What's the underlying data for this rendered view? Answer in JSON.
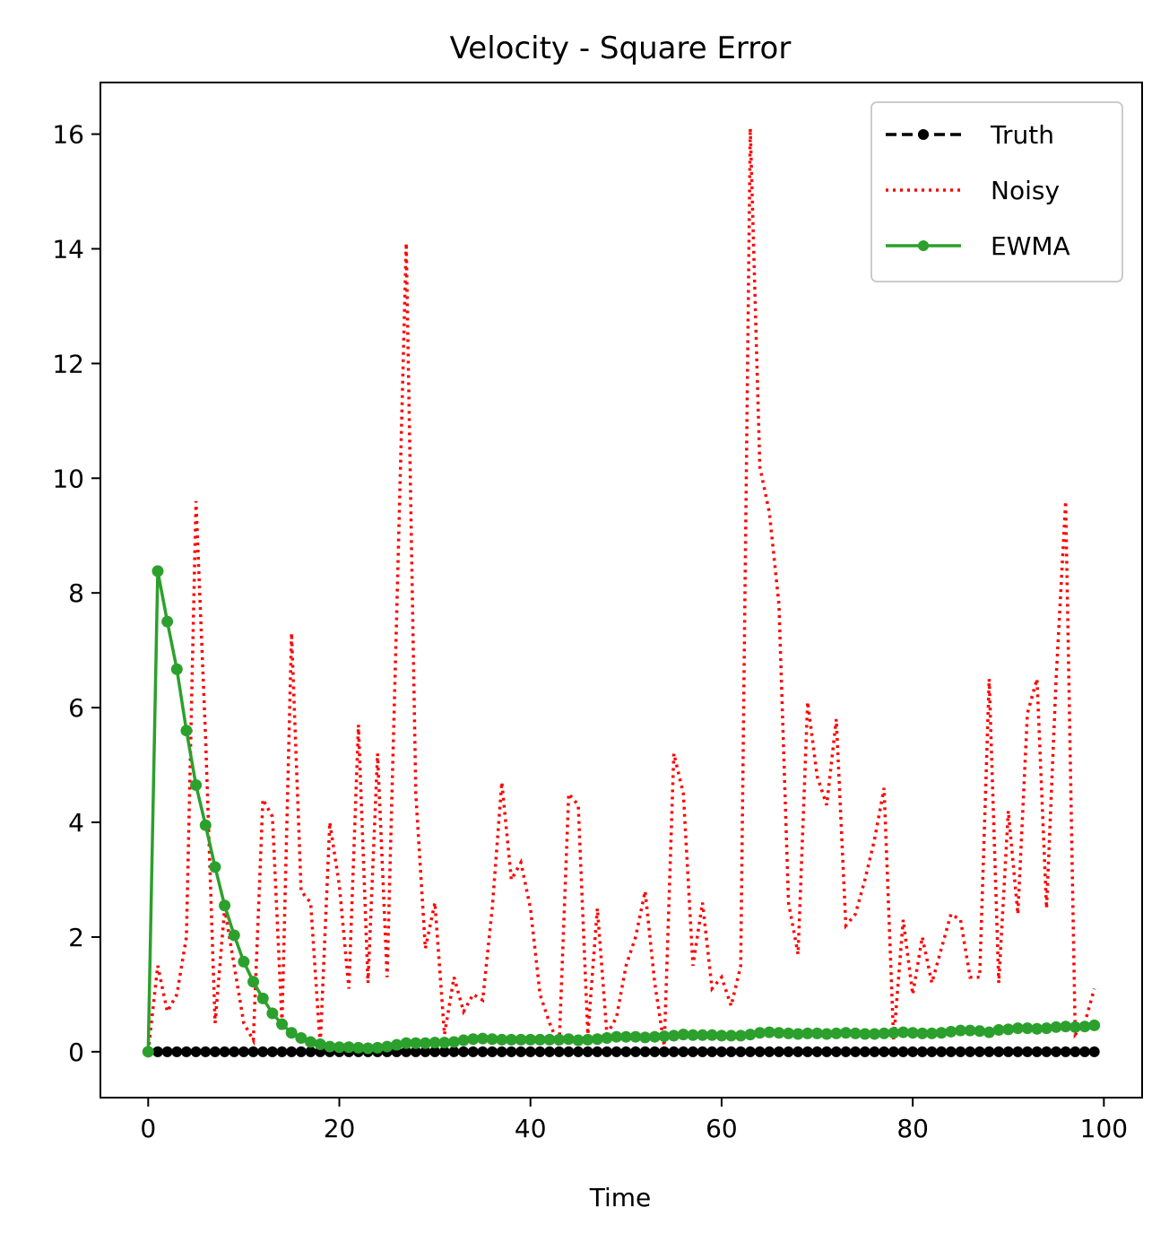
{
  "chart_data": {
    "type": "line",
    "title": "Velocity - Square Error",
    "xlabel": "Time",
    "ylabel": "",
    "xlim": [
      -5,
      104
    ],
    "ylim": [
      -0.8,
      16.9
    ],
    "xticks": [
      0,
      20,
      40,
      60,
      80,
      100
    ],
    "yticks": [
      0,
      2,
      4,
      6,
      8,
      10,
      12,
      14,
      16
    ],
    "grid": false,
    "legend_position": "top-right",
    "series": [
      {
        "name": "Truth",
        "color": "#000000",
        "style": "dashed-with-dots",
        "x_start": 0,
        "values": [
          0,
          0,
          0,
          0,
          0,
          0,
          0,
          0,
          0,
          0,
          0,
          0,
          0,
          0,
          0,
          0,
          0,
          0,
          0,
          0,
          0,
          0,
          0,
          0,
          0,
          0,
          0,
          0,
          0,
          0,
          0,
          0,
          0,
          0,
          0,
          0,
          0,
          0,
          0,
          0,
          0,
          0,
          0,
          0,
          0,
          0,
          0,
          0,
          0,
          0,
          0,
          0,
          0,
          0,
          0,
          0,
          0,
          0,
          0,
          0,
          0,
          0,
          0,
          0,
          0,
          0,
          0,
          0,
          0,
          0,
          0,
          0,
          0,
          0,
          0,
          0,
          0,
          0,
          0,
          0,
          0,
          0,
          0,
          0,
          0,
          0,
          0,
          0,
          0,
          0,
          0,
          0,
          0,
          0,
          0,
          0,
          0,
          0,
          0,
          0
        ]
      },
      {
        "name": "Noisy",
        "color": "#ff0000",
        "style": "dotted",
        "x_start": 0,
        "values": [
          0,
          1.5,
          0.7,
          1.0,
          2.0,
          9.6,
          5.5,
          0.5,
          2.5,
          1.5,
          0.5,
          0.2,
          4.4,
          4.1,
          0.5,
          7.3,
          2.8,
          2.6,
          0.1,
          4.0,
          2.9,
          1.1,
          5.7,
          1.2,
          5.2,
          1.3,
          7.6,
          14.1,
          4.5,
          1.8,
          2.6,
          0.3,
          1.3,
          0.7,
          1.0,
          0.9,
          2.5,
          4.7,
          3.0,
          3.3,
          2.5,
          1.0,
          0.5,
          0.1,
          4.5,
          4.3,
          0.3,
          2.5,
          0.3,
          0.6,
          1.5,
          2.0,
          2.8,
          1.2,
          0.1,
          5.2,
          4.5,
          1.5,
          2.6,
          1.1,
          1.3,
          0.8,
          1.5,
          16.1,
          10.2,
          9.4,
          7.8,
          2.6,
          1.7,
          6.1,
          4.8,
          4.3,
          5.8,
          2.2,
          2.4,
          3.0,
          3.7,
          4.6,
          0.2,
          2.3,
          1.0,
          2.0,
          1.2,
          1.8,
          2.4,
          2.3,
          1.3,
          1.3,
          6.5,
          1.2,
          4.2,
          2.4,
          5.9,
          6.5,
          2.5,
          6.5,
          9.6,
          0.3,
          0.5,
          1.1
        ]
      },
      {
        "name": "EWMA",
        "color": "#2ca02c",
        "style": "solid-with-dots",
        "x_start": 0,
        "values": [
          0,
          8.38,
          7.5,
          6.67,
          5.6,
          4.65,
          3.95,
          3.22,
          2.55,
          2.03,
          1.57,
          1.22,
          0.93,
          0.67,
          0.48,
          0.33,
          0.24,
          0.17,
          0.13,
          0.09,
          0.08,
          0.08,
          0.07,
          0.06,
          0.07,
          0.09,
          0.12,
          0.15,
          0.15,
          0.15,
          0.16,
          0.16,
          0.17,
          0.2,
          0.22,
          0.23,
          0.22,
          0.21,
          0.21,
          0.21,
          0.21,
          0.21,
          0.21,
          0.21,
          0.22,
          0.2,
          0.21,
          0.22,
          0.24,
          0.26,
          0.26,
          0.26,
          0.25,
          0.26,
          0.27,
          0.28,
          0.3,
          0.29,
          0.29,
          0.29,
          0.28,
          0.28,
          0.28,
          0.3,
          0.33,
          0.34,
          0.33,
          0.32,
          0.31,
          0.32,
          0.32,
          0.31,
          0.32,
          0.33,
          0.32,
          0.31,
          0.31,
          0.32,
          0.33,
          0.34,
          0.33,
          0.32,
          0.32,
          0.33,
          0.35,
          0.37,
          0.37,
          0.36,
          0.34,
          0.38,
          0.39,
          0.41,
          0.41,
          0.4,
          0.41,
          0.43,
          0.44,
          0.43,
          0.44,
          0.46
        ]
      }
    ]
  }
}
